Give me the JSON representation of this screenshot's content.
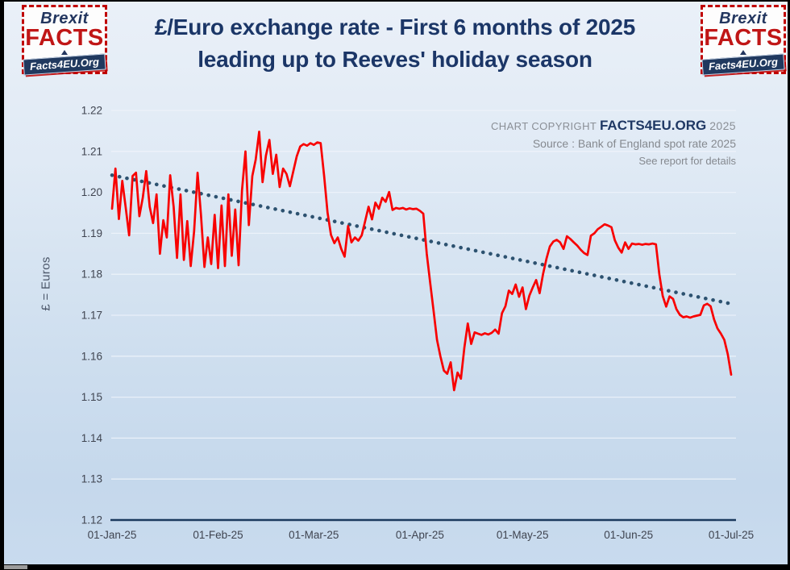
{
  "header": {
    "title_line1": "£/Euro exchange rate - First 6 months of 2025",
    "title_line2": "leading up to Reeves' holiday season"
  },
  "logo": {
    "top": "Brexit",
    "middle": "FACTS",
    "banner": "Facts4EU.Org"
  },
  "copyright": {
    "prefix": "CHART COPYRIGHT",
    "brand": "FACTS4EU.ORG",
    "year": "2025",
    "source": "Source : Bank of England spot rate 2025",
    "note": "See report for details"
  },
  "colors": {
    "line": "#f80000",
    "trend": "#2d5270",
    "axis_line": "#1b3a5e",
    "gridline": "#eef3fa",
    "title": "#1b3667",
    "brand_navy": "#1f3864",
    "brand_red": "#c00000",
    "muted_text": "#85898f",
    "tick_text": "#3f4450"
  },
  "chart_data": {
    "type": "line",
    "title": "£/Euro exchange rate - First 6 months of 2025 leading up to Reeves' holiday season",
    "xlabel": "",
    "ylabel": "£ = Euros",
    "ylim": [
      1.12,
      1.22
    ],
    "grid": true,
    "legend": false,
    "y_ticks": [
      1.12,
      1.13,
      1.14,
      1.15,
      1.16,
      1.17,
      1.18,
      1.19,
      1.2,
      1.21,
      1.22
    ],
    "x_ticks": [
      {
        "label": "01-Jan-25",
        "day": 0
      },
      {
        "label": "01-Feb-25",
        "day": 31
      },
      {
        "label": "01-Mar-25",
        "day": 59
      },
      {
        "label": "01-Apr-25",
        "day": 90
      },
      {
        "label": "01-May-25",
        "day": 120
      },
      {
        "label": "01-Jun-25",
        "day": 151
      },
      {
        "label": "01-Jul-25",
        "day": 181
      }
    ],
    "x_range_days": [
      0,
      181
    ],
    "series": [
      {
        "name": "£/Euro spot rate",
        "color": "#f80000",
        "x_start_day": 0,
        "x_step_days": 1,
        "values": [
          1.196,
          1.2058,
          1.1935,
          1.2028,
          1.1962,
          1.1895,
          1.204,
          1.2048,
          1.1942,
          1.1988,
          1.2052,
          1.1965,
          1.1925,
          1.1995,
          1.185,
          1.1932,
          1.189,
          1.2042,
          1.1965,
          1.184,
          1.1995,
          1.1835,
          1.193,
          1.182,
          1.1905,
          1.2048,
          1.1945,
          1.1818,
          1.189,
          1.1825,
          1.1945,
          1.1815,
          1.1968,
          1.182,
          1.1995,
          1.1845,
          1.1958,
          1.1822,
          1.2005,
          1.21,
          1.192,
          1.204,
          1.208,
          1.2148,
          1.2025,
          1.209,
          1.2128,
          1.2045,
          1.2092,
          1.2013,
          1.2058,
          1.2045,
          1.2015,
          1.2052,
          1.2088,
          1.2112,
          1.2118,
          1.2114,
          1.212,
          1.2116,
          1.2122,
          1.212,
          1.204,
          1.1951,
          1.1896,
          1.1876,
          1.189,
          1.1862,
          1.1843,
          1.1918,
          1.1878,
          1.189,
          1.1882,
          1.1895,
          1.193,
          1.1965,
          1.1934,
          1.1975,
          1.196,
          1.1987,
          1.1977,
          1.2001,
          1.1957,
          1.1962,
          1.196,
          1.1962,
          1.1958,
          1.1961,
          1.1959,
          1.196,
          1.1955,
          1.1948,
          1.185,
          1.178,
          1.171,
          1.164,
          1.16,
          1.1565,
          1.1557,
          1.1585,
          1.1517,
          1.156,
          1.1545,
          1.162,
          1.168,
          1.163,
          1.1658,
          1.1655,
          1.1652,
          1.1656,
          1.1653,
          1.1657,
          1.1665,
          1.1655,
          1.1705,
          1.1722,
          1.176,
          1.1752,
          1.1775,
          1.1745,
          1.1768,
          1.1715,
          1.1748,
          1.1768,
          1.1786,
          1.1754,
          1.18,
          1.1838,
          1.1868,
          1.188,
          1.1884,
          1.1878,
          1.1862,
          1.1893,
          1.1886,
          1.1878,
          1.187,
          1.186,
          1.1852,
          1.1847,
          1.1894,
          1.19,
          1.191,
          1.1916,
          1.1922,
          1.1919,
          1.1915,
          1.1883,
          1.1865,
          1.1853,
          1.1878,
          1.1862,
          1.1875,
          1.1873,
          1.1874,
          1.1872,
          1.1874,
          1.1873,
          1.1875,
          1.1873,
          1.18,
          1.1747,
          1.1721,
          1.1746,
          1.174,
          1.1715,
          1.1701,
          1.1695,
          1.1697,
          1.1694,
          1.1697,
          1.1699,
          1.1701,
          1.1724,
          1.1728,
          1.1722,
          1.169,
          1.1668,
          1.1655,
          1.164,
          1.1605,
          1.1555
        ]
      },
      {
        "name": "trend line",
        "style": "dotted",
        "color": "#2d5270",
        "x_days": [
          0,
          181
        ],
        "values": [
          1.2042,
          1.1728
        ]
      }
    ]
  }
}
